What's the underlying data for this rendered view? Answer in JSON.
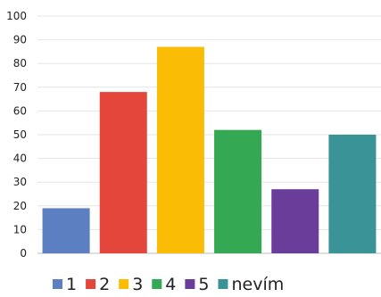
{
  "chart_data": {
    "type": "bar",
    "categories": [
      "1",
      "2",
      "3",
      "4",
      "5",
      "nevím"
    ],
    "values": [
      19,
      68,
      87,
      52,
      27,
      50
    ],
    "colors": [
      "#5b7fc1",
      "#e4463b",
      "#fbbc05",
      "#34a853",
      "#6a3d9a",
      "#3a9397"
    ],
    "y_ticks": [
      "0",
      "10",
      "20",
      "30",
      "40",
      "50",
      "60",
      "70",
      "80",
      "90",
      "100"
    ],
    "ylim": [
      0,
      100
    ],
    "grid": true,
    "legend": {
      "placement": "bottom-left",
      "entries": [
        "1",
        "2",
        "3",
        "4",
        "5",
        "nevím"
      ]
    },
    "title": "",
    "xlabel": "",
    "ylabel": ""
  }
}
